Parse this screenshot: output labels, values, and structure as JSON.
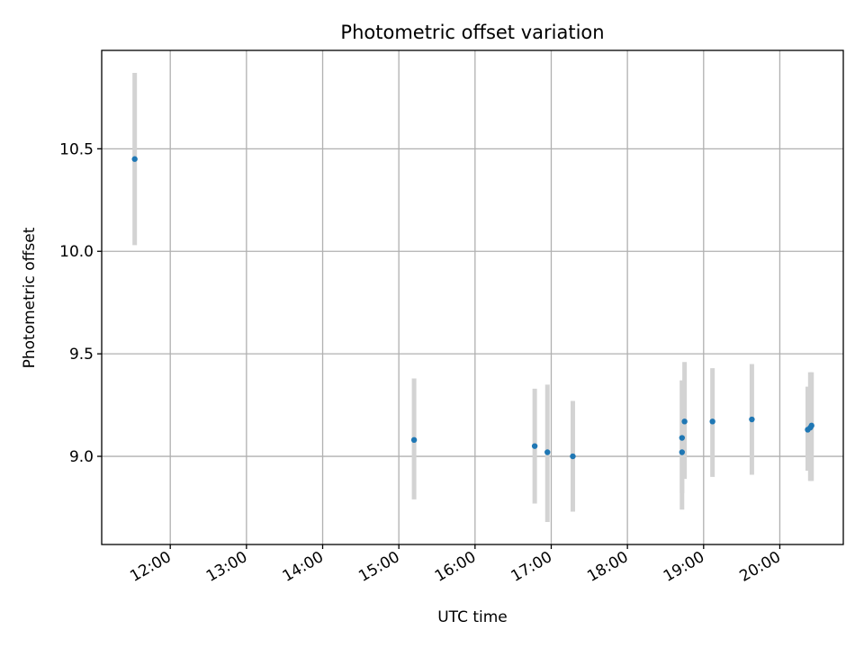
{
  "chart_data": {
    "type": "scatter",
    "title": "Photometric offset variation",
    "xlabel": "UTC time",
    "ylabel": "Photometric offset",
    "xlim": [
      "11:06",
      "20:50"
    ],
    "ylim": [
      8.57,
      10.98
    ],
    "x_ticks": [
      "12:00",
      "13:00",
      "14:00",
      "15:00",
      "16:00",
      "17:00",
      "18:00",
      "19:00",
      "20:00"
    ],
    "y_ticks": [
      9.0,
      9.5,
      10.0,
      10.5
    ],
    "y_tick_labels": [
      "9.0",
      "9.5",
      "10.0",
      "10.5"
    ],
    "grid": true,
    "colors": {
      "marker": "#1f77b4",
      "errorbar": "#d3d3d3"
    },
    "points": [
      {
        "x": "11:32",
        "y": 10.45,
        "err_low": 10.03,
        "err_high": 10.87
      },
      {
        "x": "15:12",
        "y": 9.08,
        "err_low": 8.79,
        "err_high": 9.38
      },
      {
        "x": "16:47",
        "y": 9.05,
        "err_low": 8.77,
        "err_high": 9.33
      },
      {
        "x": "16:57",
        "y": 9.02,
        "err_low": 8.68,
        "err_high": 9.35
      },
      {
        "x": "17:17",
        "y": 9.0,
        "err_low": 8.73,
        "err_high": 9.27
      },
      {
        "x": "18:43",
        "y": 9.02,
        "err_low": 8.74,
        "err_high": 9.37
      },
      {
        "x": "18:43",
        "y": 9.09,
        "err_low": 8.82,
        "err_high": 9.37
      },
      {
        "x": "18:45",
        "y": 9.17,
        "err_low": 8.89,
        "err_high": 9.46
      },
      {
        "x": "19:07",
        "y": 9.17,
        "err_low": 8.9,
        "err_high": 9.43
      },
      {
        "x": "19:38",
        "y": 9.18,
        "err_low": 8.91,
        "err_high": 9.45
      },
      {
        "x": "20:22",
        "y": 9.13,
        "err_low": 8.93,
        "err_high": 9.34
      },
      {
        "x": "20:24",
        "y": 9.14,
        "err_low": 8.88,
        "err_high": 9.41
      },
      {
        "x": "20:25",
        "y": 9.15,
        "err_low": 8.88,
        "err_high": 9.41
      }
    ]
  }
}
